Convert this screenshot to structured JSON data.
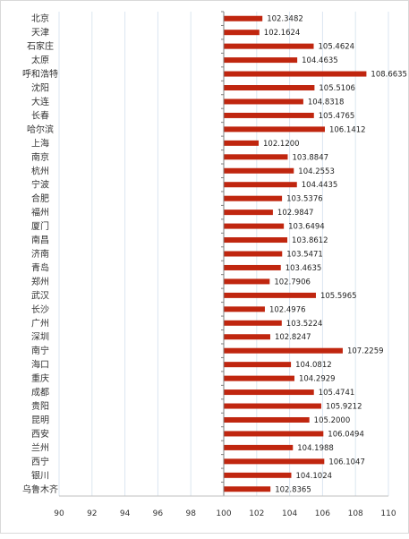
{
  "chart_data": {
    "type": "bar",
    "orientation": "horizontal",
    "categories": [
      "北京",
      "天津",
      "石家庄",
      "太原",
      "呼和浩特",
      "沈阳",
      "大连",
      "长春",
      "哈尔滨",
      "上海",
      "南京",
      "杭州",
      "宁波",
      "合肥",
      "福州",
      "厦门",
      "南昌",
      "济南",
      "青岛",
      "郑州",
      "武汉",
      "长沙",
      "广州",
      "深圳",
      "南宁",
      "海口",
      "重庆",
      "成都",
      "贵阳",
      "昆明",
      "西安",
      "兰州",
      "西宁",
      "银川",
      "乌鲁木齐"
    ],
    "values": [
      102.3482,
      102.1624,
      105.4624,
      104.4635,
      108.6635,
      105.5106,
      104.8318,
      105.4765,
      106.1412,
      102.12,
      103.8847,
      104.2553,
      104.4435,
      103.5376,
      102.9847,
      103.6494,
      103.8612,
      103.5471,
      103.4635,
      102.7906,
      105.5965,
      102.4976,
      103.5224,
      102.8247,
      107.2259,
      104.0812,
      104.2929,
      105.4741,
      105.9212,
      105.2,
      106.0494,
      104.1988,
      106.1047,
      104.1024,
      102.8365
    ],
    "value_labels": [
      "102.3482",
      "102.1624",
      "105.4624",
      "104.4635",
      "108.6635",
      "105.5106",
      "104.8318",
      "105.4765",
      "106.1412",
      "102.1200",
      "103.8847",
      "104.2553",
      "104.4435",
      "103.5376",
      "102.9847",
      "103.6494",
      "103.8612",
      "103.5471",
      "103.4635",
      "102.7906",
      "105.5965",
      "102.4976",
      "103.5224",
      "102.8247",
      "107.2259",
      "104.0812",
      "104.2929",
      "105.4741",
      "105.9212",
      "105.2000",
      "106.0494",
      "104.1988",
      "106.1047",
      "104.1024",
      "102.8365"
    ],
    "xlim": [
      90,
      110
    ],
    "xticks": [
      "90",
      "92",
      "94",
      "96",
      "98",
      "100",
      "102",
      "104",
      "106",
      "108",
      "110"
    ],
    "baseline": 100,
    "bar_color": "#c0260f",
    "grid": true,
    "grid_color": "#dbe6f0",
    "title": "",
    "xlabel": "",
    "ylabel": ""
  }
}
